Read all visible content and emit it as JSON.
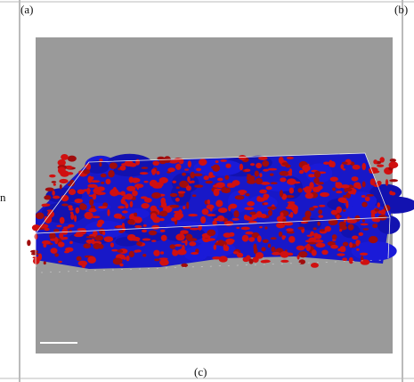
{
  "labels": {
    "a": "(a)",
    "b": "(b)",
    "c": "(c)",
    "edge_fragment": "n"
  }
}
